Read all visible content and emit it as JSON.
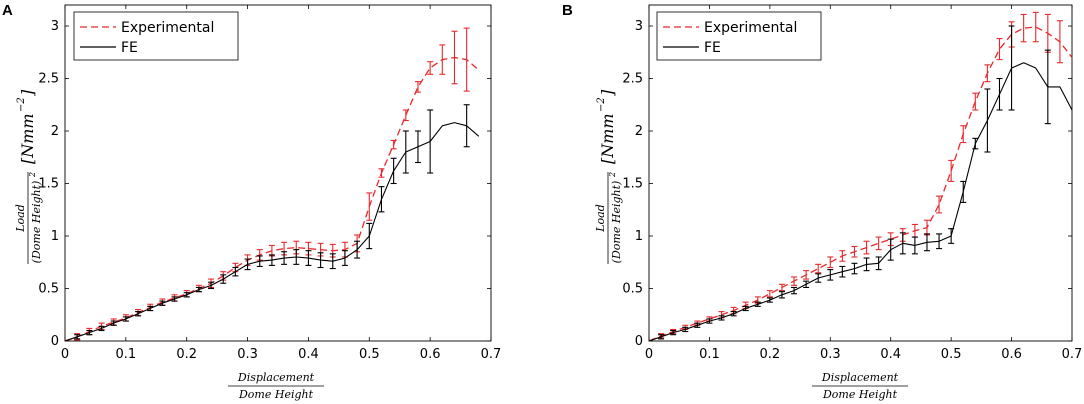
{
  "colors": {
    "experimental": "#e8282b",
    "fe": "#000000",
    "axis": "#000000",
    "background": "#ffffff"
  },
  "chart_data": [
    {
      "panel": "A",
      "type": "line",
      "title": "",
      "xlabel": {
        "numerator": "Displacement",
        "denominator": "Dome Height"
      },
      "ylabel": {
        "numerator": "Load",
        "denominator": "(Dome Height)",
        "denominator_exp": "2",
        "units": "[Nmm",
        "units_exp": "−2",
        "units_close": "]"
      },
      "xlim": [
        0,
        0.7
      ],
      "ylim": [
        0,
        3.2
      ],
      "xticks": [
        0,
        0.1,
        0.2,
        0.3,
        0.4,
        0.5,
        0.6,
        0.7
      ],
      "xtick_labels": [
        "0",
        "0.1",
        "0.2",
        "0.3",
        "0.4",
        "0.5",
        "0.6",
        "0.7"
      ],
      "yticks": [
        0,
        0.5,
        1,
        1.5,
        2,
        2.5,
        3
      ],
      "ytick_labels": [
        "0",
        "0.5",
        "1",
        "1.5",
        "2",
        "2.5",
        "3"
      ],
      "grid": false,
      "legend_position": "top-left",
      "series": [
        {
          "name": "Experimental",
          "style": "dashed",
          "x": [
            0,
            0.02,
            0.04,
            0.06,
            0.08,
            0.1,
            0.12,
            0.14,
            0.16,
            0.18,
            0.2,
            0.22,
            0.24,
            0.26,
            0.28,
            0.3,
            0.32,
            0.34,
            0.36,
            0.38,
            0.4,
            0.42,
            0.44,
            0.46,
            0.48,
            0.5,
            0.52,
            0.54,
            0.56,
            0.58,
            0.6,
            0.62,
            0.64,
            0.66,
            0.68
          ],
          "y": [
            0,
            0.04,
            0.09,
            0.14,
            0.18,
            0.22,
            0.27,
            0.32,
            0.37,
            0.41,
            0.45,
            0.5,
            0.55,
            0.62,
            0.7,
            0.77,
            0.82,
            0.86,
            0.88,
            0.89,
            0.88,
            0.87,
            0.86,
            0.87,
            0.93,
            1.28,
            1.6,
            1.87,
            2.15,
            2.42,
            2.6,
            2.68,
            2.7,
            2.68,
            2.58
          ],
          "error": [
            0,
            0.03,
            0.03,
            0.03,
            0.03,
            0.03,
            0.03,
            0.03,
            0.03,
            0.03,
            0.03,
            0.03,
            0.04,
            0.04,
            0.04,
            0.05,
            0.05,
            0.05,
            0.06,
            0.06,
            0.06,
            0.06,
            0.06,
            0.07,
            0.08,
            0.13,
            0.04,
            0.04,
            0.05,
            0.05,
            0.06,
            0.14,
            0.25,
            0.3,
            0
          ]
        },
        {
          "name": "FE",
          "style": "solid",
          "x": [
            0,
            0.02,
            0.04,
            0.06,
            0.08,
            0.1,
            0.12,
            0.14,
            0.16,
            0.18,
            0.2,
            0.22,
            0.24,
            0.26,
            0.28,
            0.3,
            0.32,
            0.34,
            0.36,
            0.38,
            0.4,
            0.42,
            0.44,
            0.46,
            0.48,
            0.5,
            0.52,
            0.54,
            0.56,
            0.58,
            0.6,
            0.62,
            0.64,
            0.66,
            0.68
          ],
          "y": [
            0,
            0.04,
            0.08,
            0.12,
            0.17,
            0.21,
            0.26,
            0.31,
            0.36,
            0.4,
            0.44,
            0.49,
            0.53,
            0.59,
            0.66,
            0.73,
            0.76,
            0.77,
            0.79,
            0.8,
            0.79,
            0.77,
            0.76,
            0.79,
            0.87,
            1.0,
            1.35,
            1.62,
            1.8,
            1.85,
            1.9,
            2.05,
            2.08,
            2.05,
            1.95
          ],
          "error": [
            0,
            0.02,
            0.02,
            0.02,
            0.02,
            0.02,
            0.02,
            0.02,
            0.02,
            0.02,
            0.02,
            0.02,
            0.03,
            0.04,
            0.04,
            0.05,
            0.05,
            0.05,
            0.06,
            0.07,
            0.07,
            0.07,
            0.07,
            0.07,
            0.08,
            0.12,
            0.12,
            0.12,
            0.2,
            0.15,
            0.3,
            0,
            0,
            0.2,
            0
          ]
        }
      ]
    },
    {
      "panel": "B",
      "type": "line",
      "title": "",
      "xlabel": {
        "numerator": "Displacement",
        "denominator": "Dome Height"
      },
      "ylabel": {
        "numerator": "Load",
        "denominator": "(Dome Height)",
        "denominator_exp": "2",
        "units": "[Nmm",
        "units_exp": "−2",
        "units_close": "]"
      },
      "xlim": [
        0,
        0.7
      ],
      "ylim": [
        0,
        3.2
      ],
      "xticks": [
        0,
        0.1,
        0.2,
        0.3,
        0.4,
        0.5,
        0.6,
        0.7
      ],
      "xtick_labels": [
        "0",
        "0.1",
        "0.2",
        "0.3",
        "0.4",
        "0.5",
        "0.6",
        "0.7"
      ],
      "yticks": [
        0,
        0.5,
        1,
        1.5,
        2,
        2.5,
        3
      ],
      "ytick_labels": [
        "0",
        "0.5",
        "1",
        "1.5",
        "2",
        "2.5",
        "3"
      ],
      "grid": false,
      "legend_position": "top-left",
      "series": [
        {
          "name": "Experimental",
          "style": "dashed",
          "x": [
            0,
            0.02,
            0.04,
            0.06,
            0.08,
            0.1,
            0.12,
            0.14,
            0.16,
            0.18,
            0.2,
            0.22,
            0.24,
            0.26,
            0.28,
            0.3,
            0.32,
            0.34,
            0.36,
            0.38,
            0.4,
            0.42,
            0.44,
            0.46,
            0.48,
            0.5,
            0.52,
            0.54,
            0.56,
            0.58,
            0.6,
            0.62,
            0.64,
            0.66,
            0.68,
            0.7
          ],
          "y": [
            0,
            0.05,
            0.09,
            0.13,
            0.17,
            0.21,
            0.25,
            0.29,
            0.34,
            0.39,
            0.45,
            0.51,
            0.57,
            0.63,
            0.69,
            0.75,
            0.81,
            0.85,
            0.89,
            0.93,
            0.97,
            1.01,
            1.05,
            1.08,
            1.3,
            1.62,
            1.97,
            2.28,
            2.55,
            2.78,
            2.92,
            2.98,
            2.99,
            2.93,
            2.85,
            2.7
          ],
          "error": [
            0,
            0.02,
            0.02,
            0.02,
            0.02,
            0.02,
            0.03,
            0.03,
            0.03,
            0.03,
            0.03,
            0.03,
            0.04,
            0.04,
            0.04,
            0.05,
            0.05,
            0.05,
            0.06,
            0.06,
            0.06,
            0.06,
            0.06,
            0.07,
            0.08,
            0.1,
            0.08,
            0.08,
            0.08,
            0.1,
            0.12,
            0.13,
            0.14,
            0.18,
            0.2,
            0
          ]
        },
        {
          "name": "FE",
          "style": "solid",
          "x": [
            0,
            0.02,
            0.04,
            0.06,
            0.08,
            0.1,
            0.12,
            0.14,
            0.16,
            0.18,
            0.2,
            0.22,
            0.24,
            0.26,
            0.28,
            0.3,
            0.32,
            0.34,
            0.36,
            0.38,
            0.4,
            0.42,
            0.44,
            0.46,
            0.48,
            0.5,
            0.52,
            0.54,
            0.56,
            0.58,
            0.6,
            0.62,
            0.64,
            0.66,
            0.68,
            0.7
          ],
          "y": [
            0,
            0.04,
            0.08,
            0.11,
            0.15,
            0.19,
            0.22,
            0.26,
            0.31,
            0.35,
            0.39,
            0.44,
            0.48,
            0.54,
            0.6,
            0.63,
            0.66,
            0.69,
            0.73,
            0.74,
            0.87,
            0.93,
            0.91,
            0.94,
            0.95,
            1.0,
            1.42,
            1.88,
            2.1,
            2.35,
            2.6,
            2.65,
            2.6,
            2.42,
            2.42,
            2.2
          ],
          "error": [
            0,
            0.02,
            0.02,
            0.02,
            0.02,
            0.02,
            0.02,
            0.02,
            0.02,
            0.02,
            0.02,
            0.03,
            0.03,
            0.03,
            0.04,
            0.05,
            0.05,
            0.05,
            0.06,
            0.06,
            0.1,
            0.1,
            0.08,
            0.08,
            0.07,
            0.07,
            0.1,
            0.05,
            0.3,
            0.15,
            0.4,
            0,
            0,
            0.35,
            0,
            0
          ]
        }
      ]
    }
  ]
}
